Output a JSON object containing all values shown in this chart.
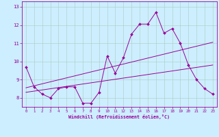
{
  "xlabel": "Windchill (Refroidissement éolien,°C)",
  "background_color": "#cceeff",
  "line_color": "#990099",
  "grid_color": "#aaccbb",
  "xlim": [
    -0.5,
    23.5
  ],
  "ylim": [
    7.5,
    13.3
  ],
  "xticks": [
    0,
    1,
    2,
    3,
    4,
    5,
    6,
    7,
    8,
    9,
    10,
    11,
    12,
    13,
    14,
    15,
    16,
    17,
    18,
    19,
    20,
    21,
    22,
    23
  ],
  "yticks": [
    8,
    9,
    10,
    11,
    12,
    13
  ],
  "series1_x": [
    0,
    1,
    2,
    3,
    4,
    5,
    6,
    7,
    8,
    9,
    10,
    11,
    12,
    13,
    14,
    15,
    16,
    17,
    18,
    19,
    20,
    21,
    22,
    23
  ],
  "series1_y": [
    9.7,
    8.6,
    8.2,
    8.0,
    8.5,
    8.6,
    8.6,
    7.7,
    7.7,
    8.3,
    10.3,
    9.35,
    10.2,
    11.5,
    12.05,
    12.05,
    12.7,
    11.55,
    11.8,
    11.0,
    9.8,
    9.0,
    8.5,
    8.2
  ],
  "series2_x": [
    0,
    23
  ],
  "series2_y": [
    8.3,
    9.8
  ],
  "series3_x": [
    0,
    23
  ],
  "series3_y": [
    8.55,
    11.05
  ]
}
